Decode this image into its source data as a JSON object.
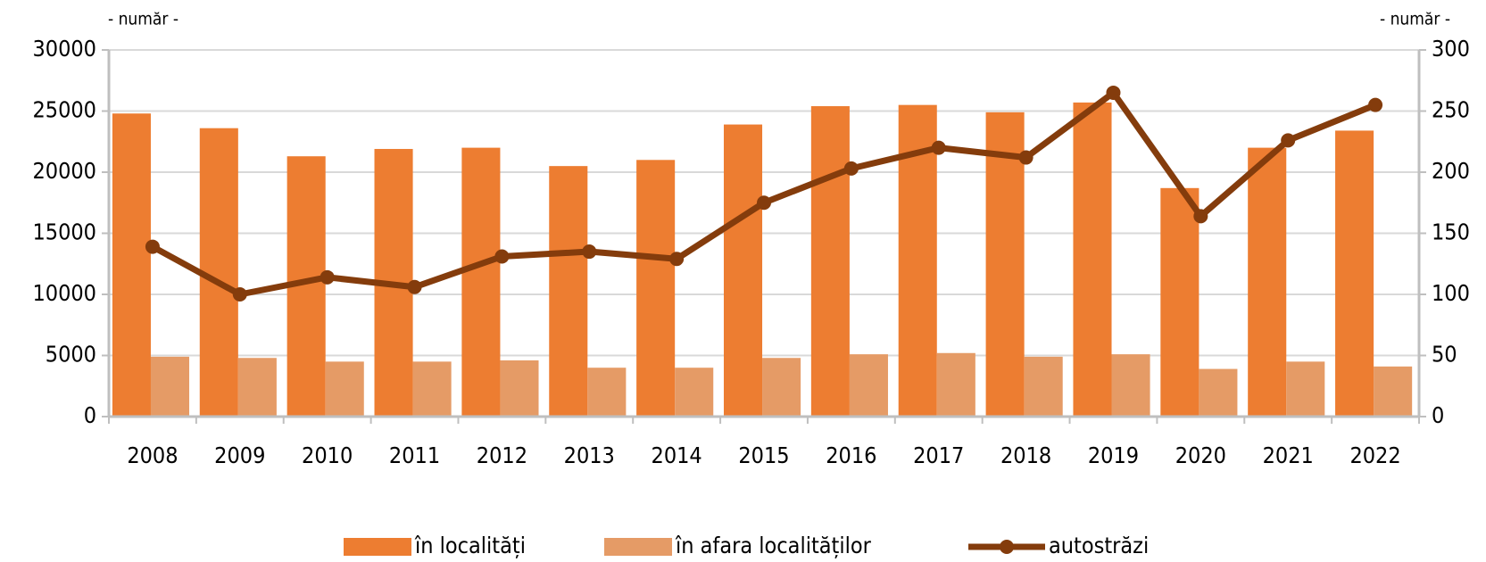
{
  "chart_data": {
    "type": "bar_line",
    "y_label": "- număr -",
    "y2_label": "- număr -",
    "categories": [
      "2008",
      "2009",
      "2010",
      "2011",
      "2012",
      "2013",
      "2014",
      "2015",
      "2016",
      "2017",
      "2018",
      "2019",
      "2020",
      "2021",
      "2022"
    ],
    "series": [
      {
        "name": "în localități",
        "color": "#ed7d31",
        "type": "bar",
        "values": [
          24800,
          23600,
          21300,
          21900,
          22000,
          20500,
          21000,
          23900,
          25400,
          25500,
          24900,
          25700,
          18700,
          22000,
          23400
        ]
      },
      {
        "name": "în afara localităților",
        "color": "#e59b66",
        "type": "bar",
        "values": [
          4900,
          4800,
          4500,
          4500,
          4600,
          4000,
          4000,
          4800,
          5100,
          5200,
          4900,
          5100,
          3900,
          4500,
          4100
        ]
      },
      {
        "name": "autostrăzi",
        "color": "#843c0c",
        "type": "line",
        "axis": "y2",
        "values": [
          139,
          100,
          114,
          106,
          131,
          135,
          129,
          175,
          203,
          220,
          212,
          265,
          164,
          226,
          255
        ]
      }
    ],
    "ylim": [
      0,
      30000
    ],
    "yticks": [
      0,
      5000,
      10000,
      15000,
      20000,
      25000,
      30000
    ],
    "y2lim": [
      0,
      300
    ],
    "y2ticks": [
      0,
      50,
      100,
      150,
      200,
      250,
      300
    ],
    "grid": true,
    "legend": "bottom"
  }
}
